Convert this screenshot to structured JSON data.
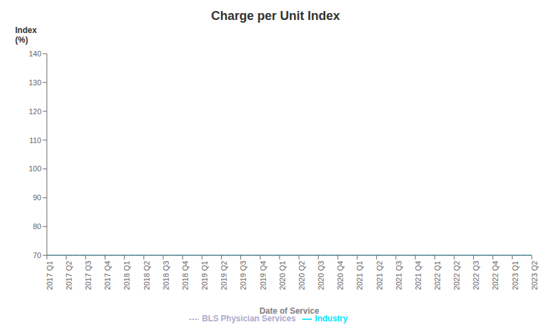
{
  "chart_data": {
    "type": "line",
    "title": "Charge per Unit Index",
    "ylabel": "Index\n(%)",
    "xlabel": "Date of Service",
    "categories": [
      "2017 Q1",
      "2017 Q2",
      "2017 Q3",
      "2017 Q4",
      "2018 Q1",
      "2018 Q2",
      "2018 Q3",
      "2018 Q4",
      "2019 Q1",
      "2019 Q2",
      "2019 Q3",
      "2019 Q4",
      "2020 Q1",
      "2020 Q2",
      "2020 Q3",
      "2020 Q4",
      "2021 Q1",
      "2021 Q2",
      "2021 Q3",
      "2021 Q4",
      "2022 Q1",
      "2022 Q2",
      "2022 Q3",
      "2022 Q4",
      "2023 Q1",
      "2023 Q2"
    ],
    "series": [
      {
        "name": "Industry",
        "color": "#00e5ff",
        "line_style": "solid",
        "values": [
          70,
          70,
          70,
          70,
          70,
          70,
          70,
          70,
          70,
          70,
          70,
          70,
          70,
          70,
          70,
          70,
          70,
          70,
          70,
          70,
          70,
          70,
          70,
          70,
          70,
          70
        ]
      },
      {
        "name": "BLS Physician Services",
        "color": "#aaaacc",
        "line_style": "dashed",
        "values": [
          70,
          70,
          70,
          70,
          70,
          70,
          70,
          70,
          70,
          70,
          70,
          70,
          70,
          70,
          70,
          70,
          70,
          70,
          70,
          70,
          70,
          70,
          70,
          70,
          70,
          70
        ]
      }
    ],
    "ylim": [
      70,
      140
    ],
    "yticks": [
      70,
      80,
      90,
      100,
      110,
      120,
      130,
      140
    ],
    "grid": false,
    "legend": "bottom"
  }
}
